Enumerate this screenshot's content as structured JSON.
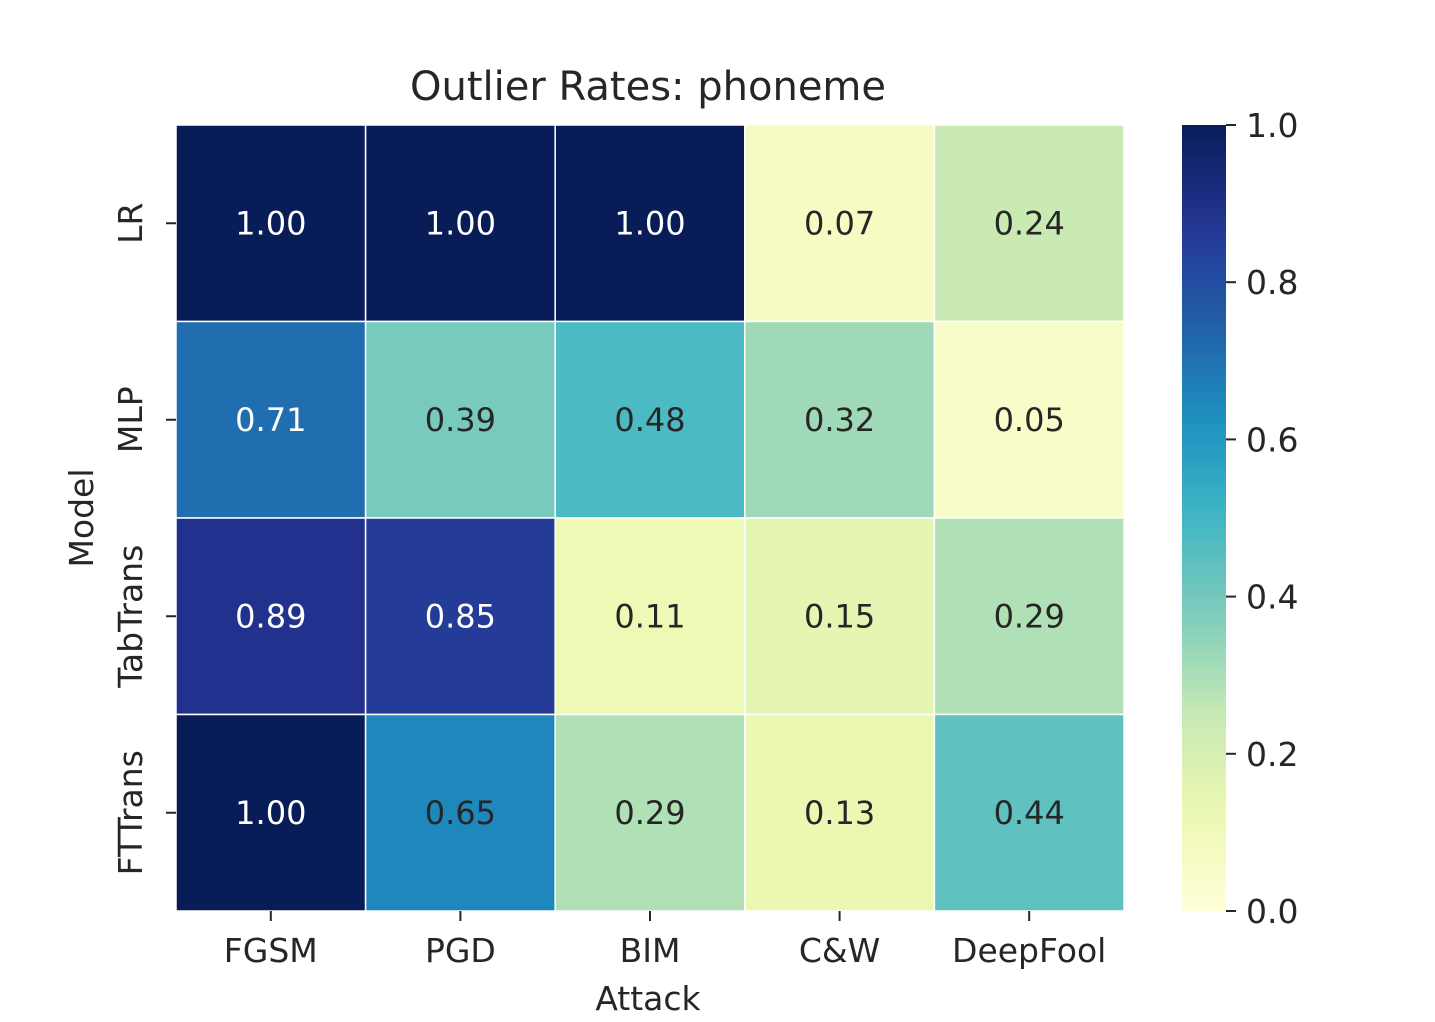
{
  "chart_data": {
    "type": "heatmap",
    "title": "Outlier Rates: phoneme",
    "xlabel": "Attack",
    "ylabel": "Model",
    "x_categories": [
      "FGSM",
      "PGD",
      "BIM",
      "C&W",
      "DeepFool"
    ],
    "y_categories": [
      "LR",
      "MLP",
      "TabTrans",
      "FTTrans"
    ],
    "values": [
      [
        1.0,
        1.0,
        1.0,
        0.07,
        0.24
      ],
      [
        0.71,
        0.39,
        0.48,
        0.32,
        0.05
      ],
      [
        0.89,
        0.85,
        0.11,
        0.15,
        0.29
      ],
      [
        1.0,
        0.65,
        0.29,
        0.13,
        0.44
      ]
    ],
    "value_labels": [
      [
        "1.00",
        "1.00",
        "1.00",
        "0.07",
        "0.24"
      ],
      [
        "0.71",
        "0.39",
        "0.48",
        "0.32",
        "0.05"
      ],
      [
        "0.89",
        "0.85",
        "0.11",
        "0.15",
        "0.29"
      ],
      [
        "1.00",
        "0.65",
        "0.29",
        "0.13",
        "0.44"
      ]
    ],
    "colormap": "YlGnBu",
    "vmin": 0.0,
    "vmax": 1.0,
    "colorbar_ticks": [
      0.0,
      0.2,
      0.4,
      0.6,
      0.8,
      1.0
    ],
    "colorbar_tick_labels": [
      "0.0",
      "0.2",
      "0.4",
      "0.6",
      "0.8",
      "1.0"
    ],
    "grid": false,
    "annotation_colors": {
      "dark_text": "#262626",
      "light_text": "#ffffff"
    }
  }
}
